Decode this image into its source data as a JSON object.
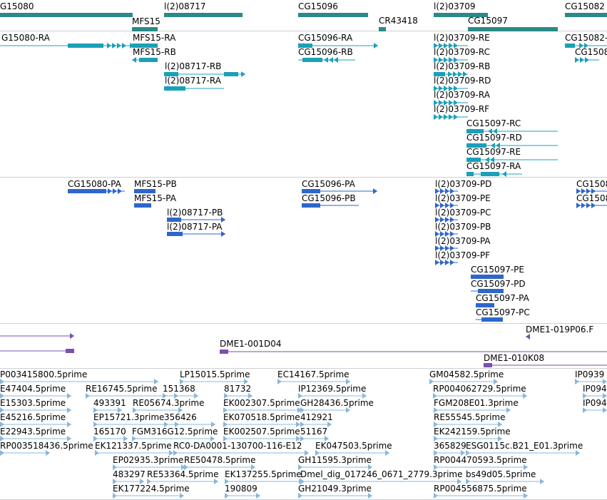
{
  "colors": {
    "gene": "#2a8a86",
    "transcript": "#1aa0b8",
    "protein": "#2e66cc",
    "clone": "#7a4fb0",
    "est": "#88b8dc",
    "separator": "#cfcfcf"
  },
  "genes": [
    {
      "label": "G15080"
    },
    {
      "label": "MFS15"
    },
    {
      "label": "l(2)08717"
    },
    {
      "label": "CG15096"
    },
    {
      "label": "CR43418"
    },
    {
      "label": "l(2)03709"
    },
    {
      "label": "CG15097"
    },
    {
      "label": "CG15082"
    }
  ],
  "transcripts": [
    {
      "label": "G15080-RA"
    },
    {
      "label": "MFS15-RA"
    },
    {
      "label": "MFS15-RB"
    },
    {
      "label": "l(2)08717-RB"
    },
    {
      "label": "l(2)08717-RA"
    },
    {
      "label": "CG15096-RA"
    },
    {
      "label": "CG15096-RB"
    },
    {
      "label": "l(2)03709-RE"
    },
    {
      "label": "l(2)03709-RC"
    },
    {
      "label": "l(2)03709-RB"
    },
    {
      "label": "l(2)03709-RD"
    },
    {
      "label": "l(2)03709-RA"
    },
    {
      "label": "l(2)03709-RF"
    },
    {
      "label": "CG15097-RC"
    },
    {
      "label": "CG15097-RD"
    },
    {
      "label": "CG15097-RE"
    },
    {
      "label": "CG15097-RA"
    },
    {
      "label": "CG15082-"
    },
    {
      "label": "CG1508"
    }
  ],
  "proteins": [
    {
      "label": "CG15080-PA"
    },
    {
      "label": "MFS15-PB"
    },
    {
      "label": "MFS15-PA"
    },
    {
      "label": "l(2)08717-PB"
    },
    {
      "label": "l(2)08717-PA"
    },
    {
      "label": "CG15096-PA"
    },
    {
      "label": "CG15096-PB"
    },
    {
      "label": "l(2)03709-PD"
    },
    {
      "label": "l(2)03709-PE"
    },
    {
      "label": "l(2)03709-PC"
    },
    {
      "label": "l(2)03709-PB"
    },
    {
      "label": "l(2)03709-PA"
    },
    {
      "label": "l(2)03709-PF"
    },
    {
      "label": "CG15097-PE"
    },
    {
      "label": "CG15097-PD"
    },
    {
      "label": "CG15097-PA"
    },
    {
      "label": "CG15097-PC"
    },
    {
      "label": "CG1508"
    },
    {
      "label": "CG1508"
    }
  ],
  "clones": [
    {
      "label": "DME1-019P06.F"
    },
    {
      "label": "DME1-001D04"
    },
    {
      "label": "DME1-010K08"
    }
  ],
  "ests": [
    {
      "label": "P003415800.5prime"
    },
    {
      "label": "LP15015.5prime"
    },
    {
      "label": "EC14167.5prime"
    },
    {
      "label": "GM04582.5prime"
    },
    {
      "label": "IP0939"
    },
    {
      "label": "E47404.5prime"
    },
    {
      "label": "RE16745.5prime"
    },
    {
      "label": "151368"
    },
    {
      "label": "81732"
    },
    {
      "label": "IP12369.5prime"
    },
    {
      "label": "RP004062729.5prime"
    },
    {
      "label": "IP094"
    },
    {
      "label": "E15303.5prime"
    },
    {
      "label": "493391"
    },
    {
      "label": "RE05674.3prime"
    },
    {
      "label": "EK002307.5prime"
    },
    {
      "label": "GH28436.5prime"
    },
    {
      "label": "FGM208E01.3prime"
    },
    {
      "label": "IP094"
    },
    {
      "label": "E45216.5prime"
    },
    {
      "label": "EP15721.3prime"
    },
    {
      "label": "356426"
    },
    {
      "label": "EK070518.5prime"
    },
    {
      "label": "412921"
    },
    {
      "label": "RE55545.5prime"
    },
    {
      "label": "E22943.5prime"
    },
    {
      "label": "165170"
    },
    {
      "label": "FGM316G12.5prime"
    },
    {
      "label": "EK002507.5prime"
    },
    {
      "label": "51167"
    },
    {
      "label": "EK242159.5prime"
    },
    {
      "label": "RP003518436.5prime"
    },
    {
      "label": "EK121337.5prime"
    },
    {
      "label": "RC0-DA0001-130700-116-E12"
    },
    {
      "label": "EK047503.5prime"
    },
    {
      "label": "365829"
    },
    {
      "label": "ESG0115c.B21_E01.3prime"
    },
    {
      "label": "EP02935.3prime"
    },
    {
      "label": "RE50478.5prime"
    },
    {
      "label": "GH11595.3prime"
    },
    {
      "label": "RP004470593.5prime"
    },
    {
      "label": "483297"
    },
    {
      "label": "RE53364.5prime"
    },
    {
      "label": "EK137255.5prime"
    },
    {
      "label": "Dmel_dig_017246_0671_2779.3prime"
    },
    {
      "label": "bs49d05.5prime"
    },
    {
      "label": "EK177224.5prime"
    },
    {
      "label": "190809"
    },
    {
      "label": "GH21049.3prime"
    },
    {
      "label": "RP004556875.5prime"
    }
  ]
}
